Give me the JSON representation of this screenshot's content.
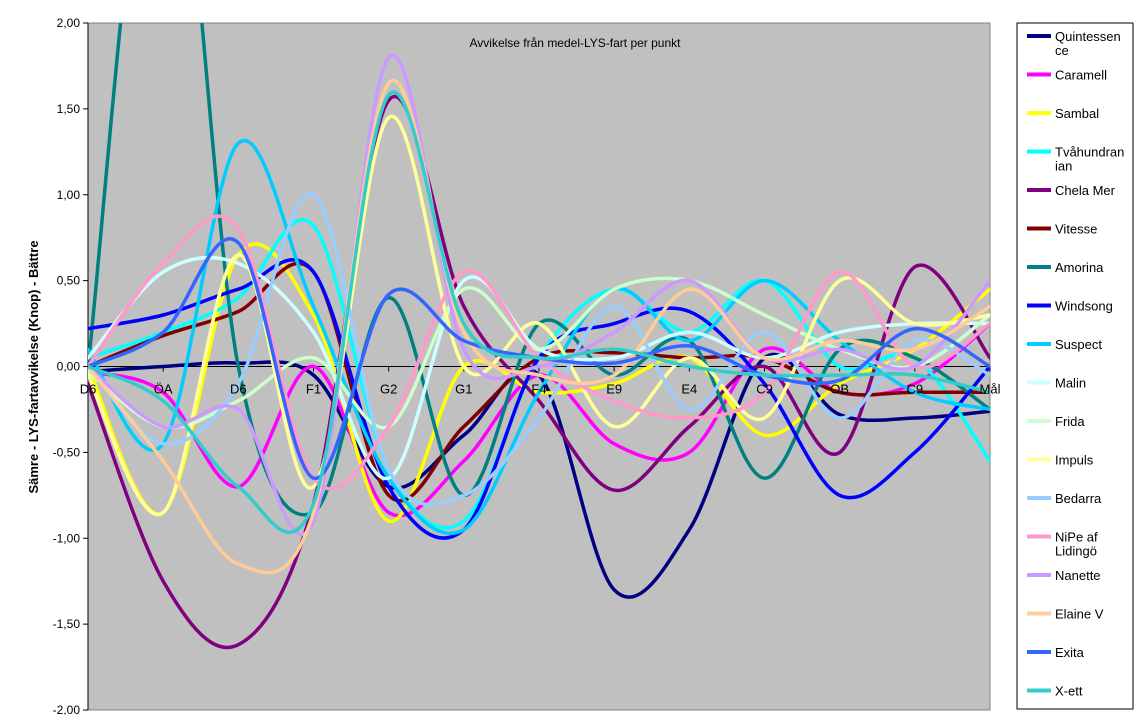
{
  "chart_data": {
    "type": "line",
    "title": "Avvikelse från medel-LYS-fart per punkt",
    "ylabel": "Sämre   -   LYS-fartavvikelse (Knop)   -   Bättre",
    "xlabel": "",
    "ylim": [
      -2,
      2
    ],
    "yticks": [
      "2,00",
      "1,50",
      "1,00",
      "0,50",
      "0,00",
      "-0,50",
      "-1,00",
      "-1,50",
      "-2,00"
    ],
    "ytick_values": [
      2,
      1.5,
      1,
      0.5,
      0,
      -0.5,
      -1,
      -1.5,
      -2
    ],
    "categories": [
      "D6",
      "ÖA",
      "D6",
      "F1",
      "G2",
      "G1",
      "F4",
      "E9",
      "E4",
      "C9",
      "OB",
      "C9",
      "Mål"
    ],
    "grid": false,
    "plot_background": "#c0c0c0",
    "legend_position": "right",
    "series": [
      {
        "name": "Quintessence",
        "color": "#000080",
        "values": [
          -0.03,
          0.0,
          0.02,
          -0.05,
          -0.7,
          -0.4,
          -0.05,
          -1.3,
          -0.95,
          0.05,
          -0.28,
          -0.3,
          -0.26
        ]
      },
      {
        "name": "Caramell",
        "color": "#ff00ff",
        "values": [
          -0.03,
          -0.15,
          -0.7,
          0.0,
          -0.85,
          -0.55,
          -0.05,
          -0.45,
          -0.5,
          0.1,
          -0.15,
          -0.1,
          0.25
        ]
      },
      {
        "name": "Sambal",
        "color": "#ffff00",
        "values": [
          0.0,
          -0.85,
          0.65,
          0.3,
          -0.9,
          0.0,
          -0.15,
          -0.1,
          0.05,
          -0.4,
          -0.1,
          0.1,
          0.45
        ]
      },
      {
        "name": "Tvåhundranian",
        "color": "#00ffff",
        "values": [
          0.05,
          0.2,
          0.4,
          0.82,
          -0.6,
          -0.9,
          0.05,
          0.45,
          0.2,
          0.5,
          0.0,
          0.05,
          -0.55
        ]
      },
      {
        "name": "Chela Mer",
        "color": "#800080",
        "values": [
          -0.1,
          -1.25,
          -1.62,
          -0.8,
          1.55,
          0.35,
          -0.2,
          -0.72,
          -0.35,
          0.0,
          -0.5,
          0.58,
          0.05
        ]
      },
      {
        "name": "Vitesse",
        "color": "#800000",
        "values": [
          0.0,
          0.18,
          0.32,
          0.55,
          -0.75,
          -0.35,
          0.05,
          0.08,
          0.05,
          0.05,
          -0.15,
          -0.15,
          -0.15
        ]
      },
      {
        "name": "Amorina",
        "color": "#008080",
        "values": [
          0.0,
          3.6,
          0.0,
          -0.85,
          0.4,
          -0.75,
          0.25,
          -0.05,
          0.15,
          -0.65,
          0.1,
          0.05,
          -0.25
        ]
      },
      {
        "name": "Windsong",
        "color": "#0000ff",
        "values": [
          0.22,
          0.3,
          0.45,
          0.55,
          -0.7,
          -0.95,
          0.05,
          0.25,
          0.32,
          -0.1,
          -0.75,
          -0.5,
          0.0
        ]
      },
      {
        "name": "Suspect",
        "color": "#00ccff",
        "values": [
          0.1,
          -0.45,
          1.3,
          0.35,
          -0.65,
          -0.95,
          -0.15,
          0.45,
          0.15,
          0.5,
          0.15,
          -0.15,
          -0.25
        ]
      },
      {
        "name": "Malin",
        "color": "#ccffff",
        "values": [
          0.05,
          0.55,
          0.6,
          0.2,
          -0.65,
          0.5,
          0.1,
          0.05,
          0.2,
          0.05,
          0.2,
          0.25,
          0.25
        ]
      },
      {
        "name": "Frida",
        "color": "#ccffcc",
        "values": [
          -0.03,
          -0.35,
          -0.2,
          0.05,
          -0.35,
          0.45,
          0.1,
          0.45,
          0.5,
          0.3,
          0.1,
          0.0,
          0.3
        ]
      },
      {
        "name": "Impuls",
        "color": "#ffff99",
        "values": [
          -0.05,
          -0.85,
          0.65,
          -0.7,
          1.45,
          0.0,
          0.25,
          -0.35,
          0.05,
          -0.3,
          0.5,
          0.25,
          0.3
        ]
      },
      {
        "name": "Bedarra",
        "color": "#99ccff",
        "values": [
          0.0,
          -0.45,
          -0.1,
          1.0,
          -0.6,
          -0.75,
          -0.3,
          0.35,
          -0.25,
          0.2,
          -0.3,
          0.15,
          -0.05
        ]
      },
      {
        "name": "NiPe af Lidingö",
        "color": "#ff99cc",
        "values": [
          0.0,
          0.6,
          0.8,
          -0.65,
          -0.35,
          0.55,
          0.05,
          -0.2,
          -0.3,
          -0.15,
          0.55,
          0.0,
          0.25
        ]
      },
      {
        "name": "Nanette",
        "color": "#cc99ff",
        "values": [
          0.0,
          -0.35,
          -0.25,
          -0.9,
          1.8,
          0.1,
          0.0,
          0.2,
          0.5,
          0.05,
          0.1,
          0.0,
          0.5
        ]
      },
      {
        "name": "Elaine V",
        "color": "#ffcc99",
        "values": [
          0.0,
          -0.55,
          -1.15,
          -0.85,
          1.65,
          0.2,
          -0.05,
          -0.05,
          0.45,
          0.05,
          0.15,
          0.1,
          0.35
        ]
      },
      {
        "name": "Exita",
        "color": "#3366ff",
        "values": [
          0.0,
          0.2,
          0.72,
          -0.65,
          0.42,
          0.15,
          0.05,
          0.02,
          0.12,
          -0.05,
          -0.08,
          0.22,
          0.0
        ]
      },
      {
        "name": "X-ett",
        "color": "#33cccc",
        "values": [
          0.0,
          -0.2,
          -0.7,
          -0.8,
          1.58,
          0.25,
          0.05,
          0.1,
          0.0,
          -0.05,
          -0.05,
          -0.05,
          -0.15
        ]
      }
    ]
  }
}
